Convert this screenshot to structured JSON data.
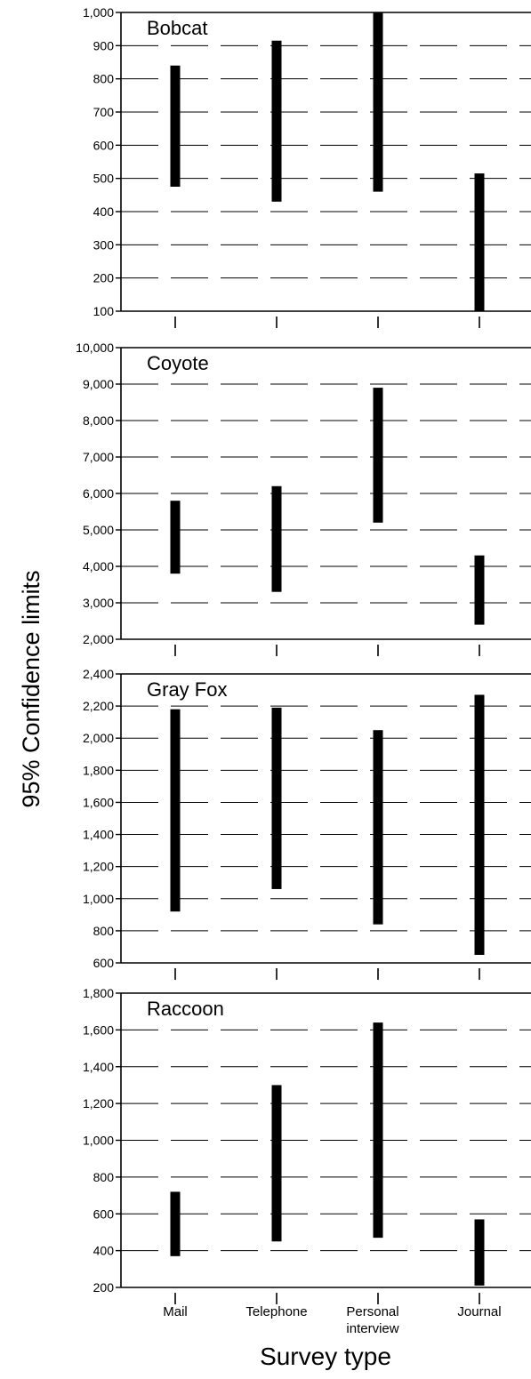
{
  "chart_data": {
    "type": "range-bar",
    "ylabel": "95% Confidence limits",
    "xlabel": "Survey type",
    "categories": [
      [
        "Mail"
      ],
      [
        "Telephone"
      ],
      [
        "Personal",
        "interview"
      ],
      [
        "Journal"
      ]
    ],
    "grid": true,
    "panels": [
      {
        "name": "Bobcat",
        "ylim": [
          100,
          1000
        ],
        "ticks": [
          "100",
          "200",
          "300",
          "400",
          "500",
          "600",
          "700",
          "800",
          "900",
          "1,000"
        ],
        "tick_values": [
          100,
          200,
          300,
          400,
          500,
          600,
          700,
          800,
          900,
          1000
        ],
        "ranges": [
          [
            475,
            840
          ],
          [
            430,
            915
          ],
          [
            460,
            1000
          ],
          [
            100,
            515
          ]
        ]
      },
      {
        "name": "Coyote",
        "ylim": [
          2000,
          10000
        ],
        "ticks": [
          "2,000",
          "3,000",
          "4,000",
          "5,000",
          "6,000",
          "7,000",
          "8,000",
          "9,000",
          "10,000"
        ],
        "tick_values": [
          2000,
          3000,
          4000,
          5000,
          6000,
          7000,
          8000,
          9000,
          10000
        ],
        "ranges": [
          [
            3800,
            5800
          ],
          [
            3300,
            6200
          ],
          [
            5200,
            8900
          ],
          [
            2400,
            4300
          ]
        ]
      },
      {
        "name": "Gray Fox",
        "ylim": [
          600,
          2400
        ],
        "ticks": [
          "600",
          "800",
          "1,000",
          "1,200",
          "1,400",
          "1,600",
          "1,800",
          "2,000",
          "2,200",
          "2,400"
        ],
        "tick_values": [
          600,
          800,
          1000,
          1200,
          1400,
          1600,
          1800,
          2000,
          2200,
          2400
        ],
        "ranges": [
          [
            920,
            2180
          ],
          [
            1060,
            2190
          ],
          [
            840,
            2050
          ],
          [
            650,
            2270
          ]
        ]
      },
      {
        "name": "Raccoon",
        "ylim": [
          200,
          1800
        ],
        "ticks": [
          "200",
          "400",
          "600",
          "800",
          "1,000",
          "1,200",
          "1,400",
          "1,600",
          "1,800"
        ],
        "tick_values": [
          200,
          400,
          600,
          800,
          1000,
          1200,
          1400,
          1600,
          1800
        ],
        "ranges": [
          [
            370,
            720
          ],
          [
            450,
            1300
          ],
          [
            470,
            1640
          ],
          [
            210,
            570
          ]
        ]
      }
    ]
  }
}
